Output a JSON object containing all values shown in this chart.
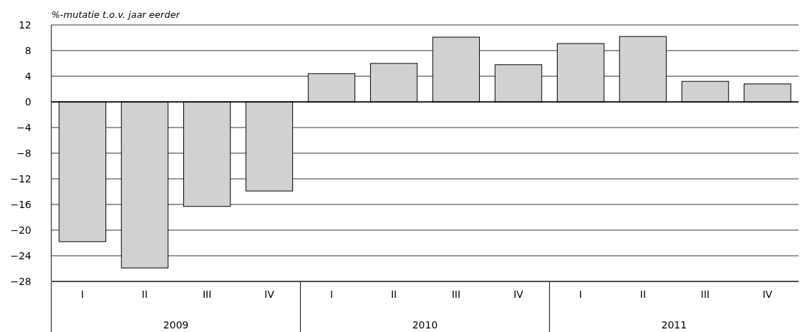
{
  "chart_data": {
    "type": "bar",
    "ylabel": "%-mutatie t.o.v. jaar eerder",
    "categories": [
      "I",
      "II",
      "III",
      "IV",
      "I",
      "II",
      "III",
      "IV",
      "I",
      "II",
      "III",
      "IV"
    ],
    "values": [
      -21.8,
      -25.9,
      -16.3,
      -13.9,
      4.4,
      6.0,
      10.1,
      5.8,
      9.1,
      10.2,
      3.2,
      2.8
    ],
    "color": "#d0d1d3",
    "ylim": [
      -28,
      12
    ],
    "yticks": [
      {
        "value": -28,
        "label": "−28"
      },
      {
        "value": -24,
        "label": "−24"
      },
      {
        "value": -20,
        "label": "−20"
      },
      {
        "value": -16,
        "label": "−16"
      },
      {
        "value": -12,
        "label": "−12"
      },
      {
        "value": -8,
        "label": "−8"
      },
      {
        "value": -4,
        "label": "−4"
      },
      0,
      4,
      8,
      12
    ],
    "grid": "y",
    "annotations": [
      "2009",
      "2010",
      "2011"
    ]
  }
}
